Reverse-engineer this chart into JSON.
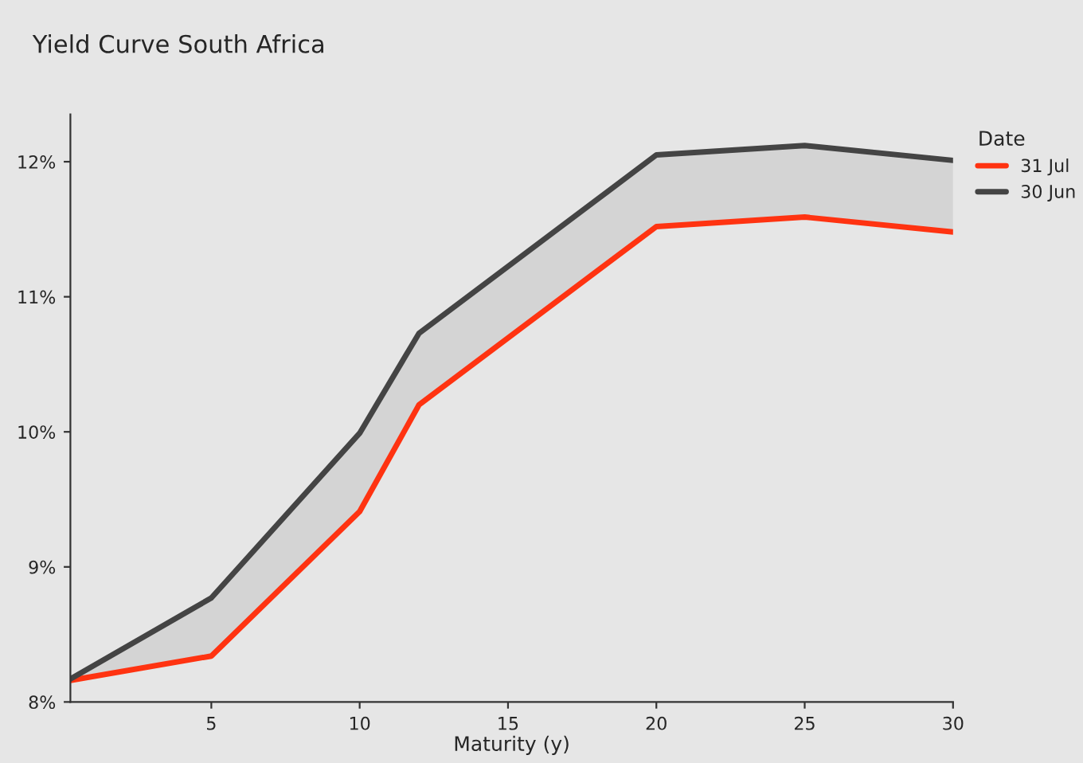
{
  "chart_data": {
    "type": "line",
    "title": "Yield Curve South Africa",
    "xlabel": "Maturity (y)",
    "legend_title": "Date",
    "legend": "right",
    "x": [
      0.25,
      5,
      10,
      12,
      20,
      25,
      30
    ],
    "series": [
      {
        "name": "31 Jul",
        "color": "#ff3311",
        "values": [
          8.16,
          8.34,
          9.41,
          10.2,
          11.52,
          11.59,
          11.48
        ],
        "lower": [
          8.16,
          8.34,
          9.41,
          10.2,
          11.52,
          11.59,
          11.48
        ],
        "upper": [
          8.17,
          8.77,
          9.99,
          10.73,
          12.05,
          12.12,
          12.01
        ]
      },
      {
        "name": "30 Jun",
        "color": "#444444",
        "values": [
          8.17,
          8.77,
          9.99,
          10.73,
          12.05,
          12.12,
          12.01
        ]
      }
    ],
    "xlim": [
      0.25,
      30
    ],
    "xticks": [
      5,
      10,
      15,
      20,
      25,
      30
    ],
    "ylim": [
      8,
      12.35
    ],
    "yticks": [
      {
        "value": 8,
        "label": "8%"
      },
      {
        "value": 9,
        "label": "9%"
      },
      {
        "value": 10,
        "label": "10%"
      },
      {
        "value": 11,
        "label": "11%"
      },
      {
        "value": 12,
        "label": "12%"
      }
    ],
    "grid": false,
    "line_style": "solid",
    "marker": "none"
  }
}
